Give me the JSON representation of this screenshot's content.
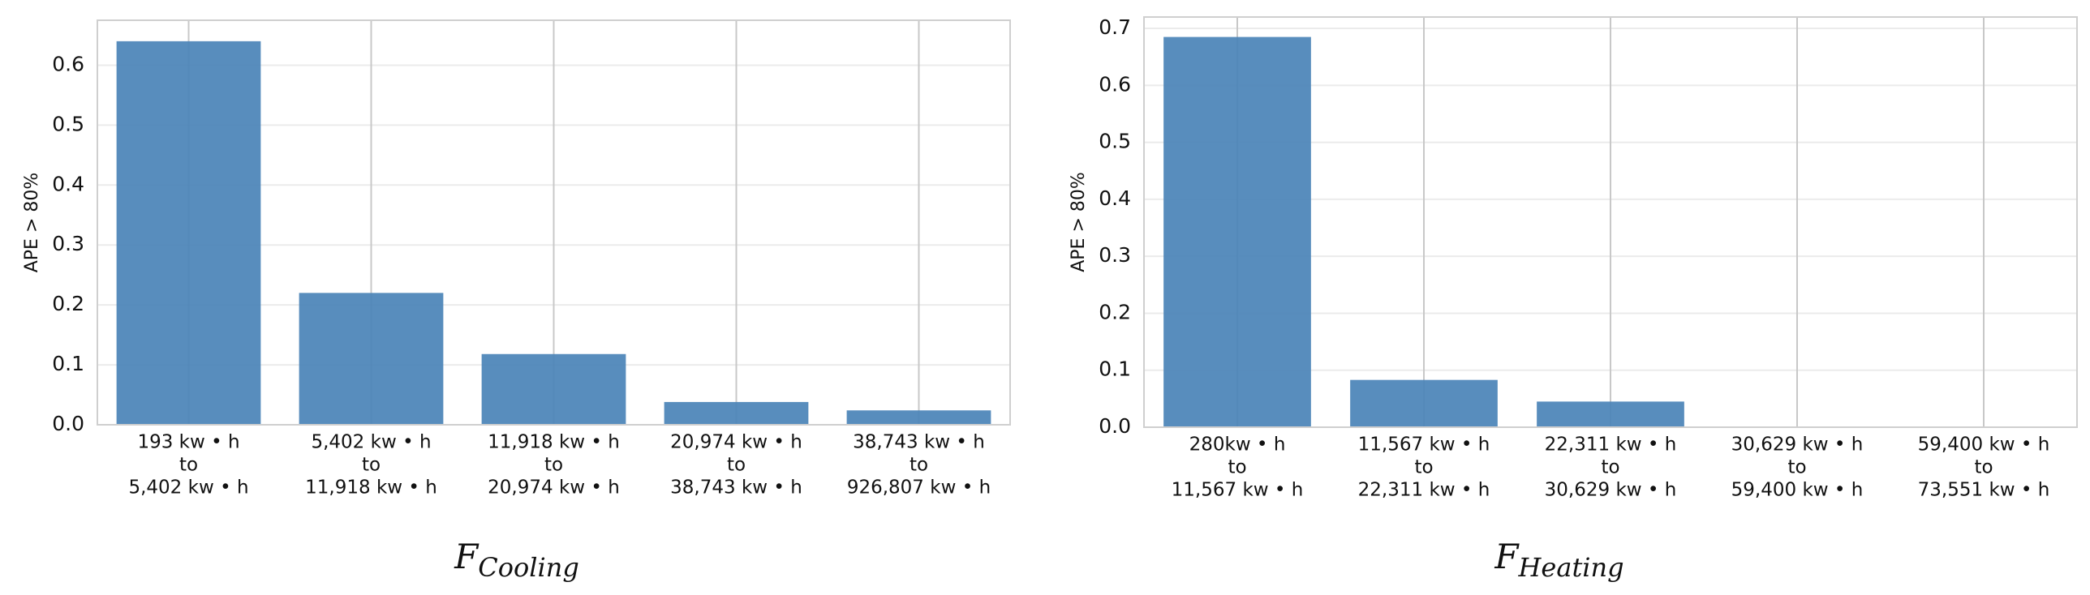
{
  "chart_data": [
    {
      "type": "bar",
      "title": "F",
      "title_subscript": "Cooling",
      "y_label": "APE > 80%",
      "categories": [
        [
          "193 kw • h",
          "to",
          "5,402 kw • h"
        ],
        [
          "5,402 kw • h",
          "to",
          "11,918 kw • h"
        ],
        [
          "11,918 kw • h",
          "to",
          "20,974 kw • h"
        ],
        [
          "20,974 kw • h",
          "to",
          "38,743 kw • h"
        ],
        [
          "38,743 kw • h",
          "to",
          "926,807 kw • h"
        ]
      ],
      "values": [
        0.64,
        0.22,
        0.118,
        0.038,
        0.024
      ],
      "color": "#4a83b7",
      "ylim": [
        0,
        0.675
      ],
      "yticks": [
        {
          "value": 0,
          "label": "0.0"
        },
        0.1,
        0.2,
        0.3,
        0.4,
        0.5,
        0.6
      ],
      "grid": true
    },
    {
      "type": "bar",
      "title": "F",
      "title_subscript": "Heating",
      "y_label": "APE > 80%",
      "categories": [
        [
          "280kw • h",
          "to",
          "11,567 kw • h"
        ],
        [
          "11,567 kw • h",
          "to",
          "22,311 kw • h"
        ],
        [
          "22,311 kw • h",
          "to",
          "30,629 kw • h"
        ],
        [
          "30,629 kw • h",
          "to",
          "59,400 kw • h"
        ],
        [
          "59,400 kw • h",
          "to",
          "73,551 kw • h"
        ]
      ],
      "values": [
        0.685,
        0.083,
        0.045,
        0,
        0
      ],
      "color": "#4a83b7",
      "ylim": [
        0,
        0.72
      ],
      "yticks": [
        {
          "value": 0,
          "label": "0.0"
        },
        0.1,
        0.2,
        0.3,
        0.4,
        0.5,
        0.6,
        0.7
      ],
      "grid": true
    }
  ]
}
